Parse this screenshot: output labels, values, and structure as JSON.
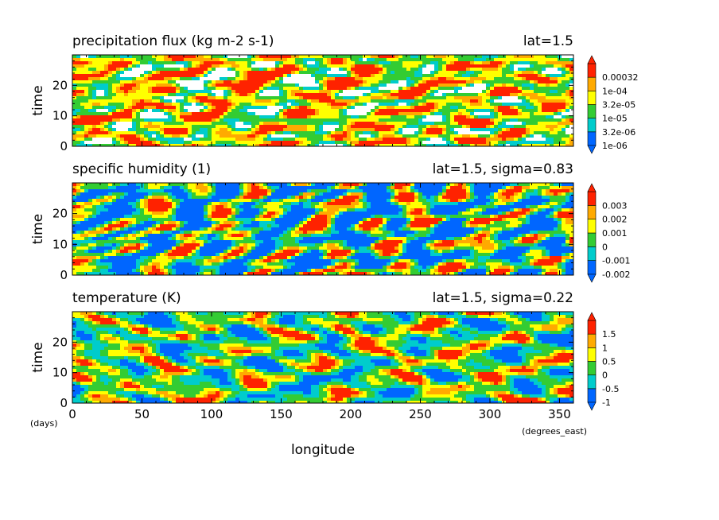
{
  "chart_data": [
    {
      "type": "heatmap",
      "title": "precipitation flux (kg m-2 s-1)",
      "subtitle": "lat=1.5",
      "ylabel": "time",
      "xlim": [
        0,
        360
      ],
      "ylim": [
        0,
        30
      ],
      "x_ticks": [
        "0",
        "50",
        "100",
        "150",
        "200",
        "250",
        "300",
        "350"
      ],
      "y_ticks": [
        "0",
        "10",
        "20"
      ],
      "colorbar": {
        "labels": [
          "1e-06",
          "3.2e-06",
          "1e-05",
          "3.2e-05",
          "1e-04",
          "0.00032"
        ],
        "colors": [
          "#0066ff",
          "#00cccc",
          "#33cc33",
          "#ffff00",
          "#ffaa00",
          "#ff2200"
        ],
        "extend": "both"
      },
      "has_white_gaps": true,
      "seed": 7,
      "dominant": "mixed green/yellow with red patches"
    },
    {
      "type": "heatmap",
      "title": "specific humidity (1)",
      "subtitle": "lat=1.5, sigma=0.83",
      "ylabel": "time",
      "xlim": [
        0,
        360
      ],
      "ylim": [
        0,
        30
      ],
      "x_ticks": [
        "0",
        "50",
        "100",
        "150",
        "200",
        "250",
        "300",
        "350"
      ],
      "y_ticks": [
        "0",
        "10",
        "20"
      ],
      "colorbar": {
        "labels": [
          "-0.002",
          "-0.001",
          "0",
          "0.001",
          "0.002",
          "0.003"
        ],
        "colors": [
          "#0066ff",
          "#00cccc",
          "#33cc33",
          "#ffff00",
          "#ffaa00",
          "#ff2200"
        ],
        "extend": "both"
      },
      "has_white_gaps": false,
      "seed": 23,
      "dominant": "blue bands tilted eastward with yellow/red streaks"
    },
    {
      "type": "heatmap",
      "title": "temperature (K)",
      "subtitle": "lat=1.5, sigma=0.22",
      "ylabel": "time",
      "xlabel": "longitude",
      "x_unit": "(degrees_east)",
      "y_unit": "(days)",
      "xlim": [
        0,
        360
      ],
      "ylim": [
        0,
        30
      ],
      "x_ticks": [
        "0",
        "50",
        "100",
        "150",
        "200",
        "250",
        "300",
        "350"
      ],
      "y_ticks": [
        "0",
        "10",
        "20"
      ],
      "colorbar": {
        "labels": [
          "-1",
          "-0.5",
          "0",
          "0.5",
          "1",
          "1.5"
        ],
        "colors": [
          "#0066ff",
          "#00cccc",
          "#33cc33",
          "#ffff00",
          "#ffaa00",
          "#ff2200"
        ],
        "extend": "both"
      },
      "has_white_gaps": false,
      "seed": 51,
      "dominant": "green/blue with thin red streaks"
    }
  ]
}
